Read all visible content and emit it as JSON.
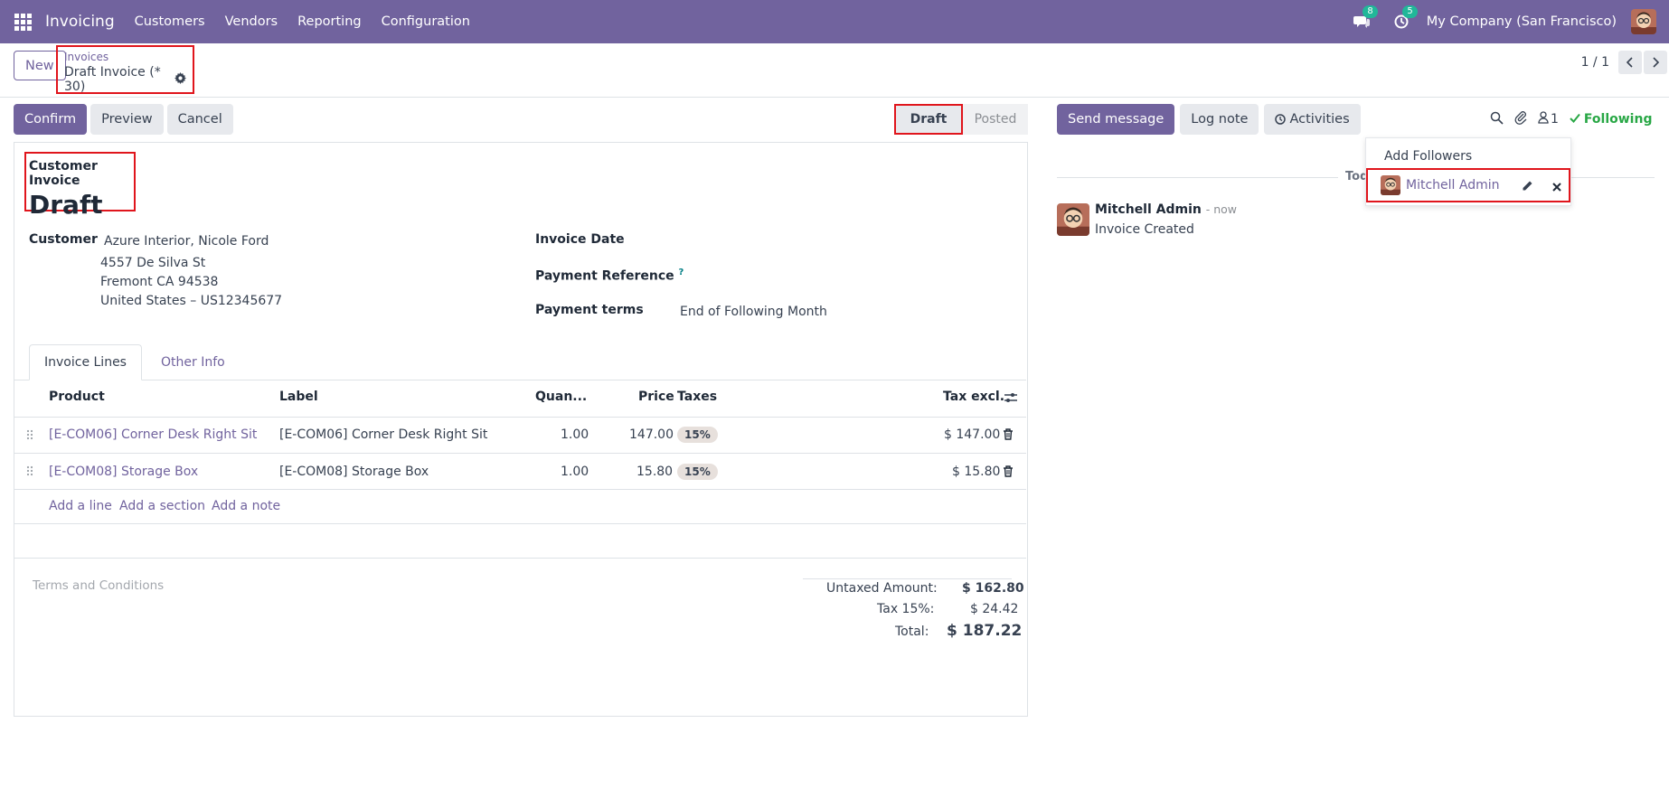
{
  "navbar": {
    "app_name": "Invoicing",
    "menu": [
      "Customers",
      "Vendors",
      "Reporting",
      "Configuration"
    ],
    "messages_badge": "8",
    "activities_badge": "5",
    "company": "My Company (San Francisco)"
  },
  "control": {
    "new_label": "New",
    "breadcrumb_parent": "Invoices",
    "breadcrumb_current": "Draft Invoice (* 30)",
    "pager_value": "1 / 1"
  },
  "actions": {
    "confirm": "Confirm",
    "preview": "Preview",
    "cancel": "Cancel"
  },
  "status": {
    "draft": "Draft",
    "posted": "Posted"
  },
  "form": {
    "type_label": "Customer Invoice",
    "state": "Draft",
    "customer_label": "Customer",
    "customer_name": "Azure Interior, Nicole Ford",
    "address_line1": "4557 De Silva St",
    "address_line2": "Fremont CA 94538",
    "address_line3": "United States – US12345677",
    "invoice_date_label": "Invoice Date",
    "payment_reference_label": "Payment Reference",
    "help_mark": "?",
    "payment_terms_label": "Payment terms",
    "payment_terms_value": "End of Following Month"
  },
  "tabs": [
    "Invoice Lines",
    "Other Info"
  ],
  "lines": {
    "columns": [
      "Product",
      "Label",
      "Quan...",
      "Price",
      "Taxes",
      "Tax excl."
    ],
    "rows": [
      {
        "product": "[E-COM06] Corner Desk Right Sit",
        "label": "[E-COM06] Corner Desk Right Sit",
        "quantity": "1.00",
        "price": "147.00",
        "tax": "15%",
        "subtotal": "$ 147.00"
      },
      {
        "product": "[E-COM08] Storage Box",
        "label": "[E-COM08] Storage Box",
        "quantity": "1.00",
        "price": "15.80",
        "tax": "15%",
        "subtotal": "$ 15.80"
      }
    ],
    "add_line": "Add a line",
    "add_section": "Add a section",
    "add_note": "Add a note"
  },
  "footer": {
    "terms_placeholder": "Terms and Conditions",
    "untaxed_label": "Untaxed Amount:",
    "untaxed_value": "$ 162.80",
    "tax_label": "Tax 15%:",
    "tax_value": "$ 24.42",
    "total_label": "Total:",
    "total_value": "$ 187.22"
  },
  "chatter": {
    "send_message": "Send message",
    "log_note": "Log note",
    "activities": "Activities",
    "followers_count": "1",
    "following": "Following",
    "today_label": "Toda",
    "add_followers": "Add Followers",
    "follower_name": "Mitchell Admin",
    "message_author": "Mitchell Admin",
    "message_time": "- now",
    "message_body": "Invoice Created"
  },
  "colors": {
    "brand": "#71639e",
    "highlight": "#e0151c",
    "following": "#28a745"
  }
}
